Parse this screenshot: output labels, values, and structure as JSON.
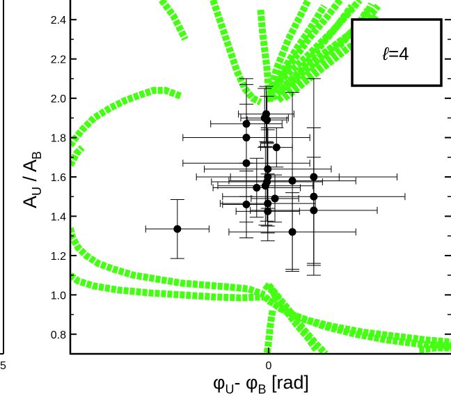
{
  "chart_data": {
    "type": "scatter",
    "title": "",
    "ylabel": "A",
    "ylabel_sub_num": "U",
    "ylabel_sep": " / A",
    "ylabel_sub_den": "B",
    "xlabel": "φ",
    "xlabel_sub_a": "U",
    "xlabel_sep": "- φ",
    "xlabel_sub_b": "B",
    "xlabel_unit": " [rad]",
    "legend_box": {
      "prefix": "ℓ",
      "text": "=4",
      "placement": "top-right"
    },
    "left_panel_fragment_label": "5",
    "xlim": [
      -2.5,
      2.3
    ],
    "ylim": [
      0.7,
      2.5
    ],
    "x_ticks": [
      {
        "value": 0,
        "label": "0"
      }
    ],
    "y_ticks": [
      {
        "value": 0.8,
        "label": "0.8"
      },
      {
        "value": 1.0,
        "label": "1.0"
      },
      {
        "value": 1.2,
        "label": "1.2"
      },
      {
        "value": 1.4,
        "label": "1.4"
      },
      {
        "value": 1.6,
        "label": "1.6"
      },
      {
        "value": 1.8,
        "label": "1.8"
      },
      {
        "value": 2.0,
        "label": "2.0"
      },
      {
        "value": 2.2,
        "label": "2.2"
      },
      {
        "value": 2.4,
        "label": "2.4"
      }
    ],
    "grid": false,
    "colors": {
      "curve": "#44ff11",
      "points": "#000000",
      "frame": "#000000"
    },
    "model_curves": [
      {
        "points": [
          [
            -2.5,
            1.34
          ],
          [
            -2.47,
            1.29
          ],
          [
            -2.4,
            1.24
          ],
          [
            -2.3,
            1.2
          ],
          [
            -2.15,
            1.16
          ],
          [
            -1.95,
            1.13
          ],
          [
            -1.7,
            1.1
          ],
          [
            -1.4,
            1.08
          ],
          [
            -1.1,
            1.06
          ],
          [
            -0.8,
            1.05
          ],
          [
            -0.5,
            1.04
          ],
          [
            -0.25,
            1.03
          ],
          [
            -0.05,
            1.0
          ]
        ]
      },
      {
        "points": [
          [
            -2.5,
            1.1
          ],
          [
            -2.4,
            1.07
          ],
          [
            -2.2,
            1.045
          ],
          [
            -1.9,
            1.025
          ],
          [
            -1.5,
            1.01
          ],
          [
            -1.1,
            1.0
          ],
          [
            -0.7,
            0.99
          ],
          [
            -0.35,
            0.985
          ],
          [
            -0.05,
            0.99
          ]
        ]
      },
      {
        "points": [
          [
            -2.5,
            1.76
          ],
          [
            -2.45,
            1.79
          ],
          [
            -2.35,
            1.84
          ],
          [
            -2.2,
            1.9
          ],
          [
            -2.0,
            1.95
          ],
          [
            -1.8,
            1.99
          ],
          [
            -1.6,
            2.02
          ],
          [
            -1.45,
            2.04
          ],
          [
            -1.3,
            2.04
          ],
          [
            -1.1,
            2.01
          ]
        ]
      },
      {
        "points": [
          [
            -2.5,
            1.66
          ],
          [
            -2.42,
            1.72
          ],
          [
            -2.35,
            1.75
          ]
        ]
      },
      {
        "points": [
          [
            -0.7,
            2.5
          ],
          [
            -0.6,
            2.38
          ],
          [
            -0.5,
            2.26
          ],
          [
            -0.4,
            2.14
          ],
          [
            -0.3,
            2.05
          ],
          [
            -0.2,
            2.0
          ],
          [
            -0.1,
            1.98
          ]
        ]
      },
      {
        "points": [
          [
            -1.35,
            2.5
          ],
          [
            -1.2,
            2.42
          ],
          [
            -1.05,
            2.3
          ]
        ]
      },
      {
        "points": [
          [
            -0.1,
            2.45
          ],
          [
            -0.08,
            2.35
          ],
          [
            -0.05,
            2.25
          ],
          [
            -0.02,
            2.15
          ],
          [
            0.0,
            2.05
          ],
          [
            0.02,
            1.98
          ]
        ]
      },
      {
        "points": [
          [
            0.0,
            2.0
          ],
          [
            0.1,
            2.15
          ],
          [
            0.25,
            2.3
          ],
          [
            0.4,
            2.42
          ],
          [
            0.5,
            2.5
          ]
        ]
      },
      {
        "points": [
          [
            0.0,
            2.0
          ],
          [
            0.15,
            2.12
          ],
          [
            0.35,
            2.25
          ],
          [
            0.55,
            2.37
          ],
          [
            0.7,
            2.47
          ]
        ]
      },
      {
        "points": [
          [
            0.02,
            2.02
          ],
          [
            0.25,
            2.16
          ],
          [
            0.5,
            2.3
          ],
          [
            0.75,
            2.42
          ],
          [
            0.9,
            2.5
          ]
        ]
      },
      {
        "points": [
          [
            0.05,
            2.0
          ],
          [
            0.35,
            2.12
          ],
          [
            0.6,
            2.24
          ],
          [
            0.85,
            2.36
          ],
          [
            1.05,
            2.47
          ]
        ]
      },
      {
        "points": [
          [
            0.07,
            2.06
          ],
          [
            0.5,
            2.22
          ],
          [
            0.8,
            2.34
          ],
          [
            1.0,
            2.43
          ],
          [
            1.15,
            2.5
          ]
        ]
      },
      {
        "points": [
          [
            0.12,
            1.99
          ],
          [
            0.55,
            2.14
          ],
          [
            0.9,
            2.27
          ],
          [
            1.1,
            2.36
          ],
          [
            1.25,
            2.45
          ]
        ]
      },
      {
        "points": [
          [
            0.15,
            2.04
          ],
          [
            0.6,
            2.2
          ],
          [
            1.0,
            2.32
          ],
          [
            1.2,
            2.4
          ],
          [
            1.3,
            2.48
          ]
        ]
      },
      {
        "points": [
          [
            0.2,
            2.0
          ],
          [
            0.7,
            2.16
          ],
          [
            1.05,
            2.27
          ],
          [
            1.25,
            2.35
          ],
          [
            1.35,
            2.42
          ]
        ]
      },
      {
        "points": [
          [
            0.22,
            2.06
          ],
          [
            0.75,
            2.24
          ],
          [
            1.1,
            2.35
          ],
          [
            1.3,
            2.43
          ],
          [
            1.38,
            2.47
          ]
        ]
      },
      {
        "points": [
          [
            -0.05,
            0.99
          ],
          [
            0.15,
            0.93
          ],
          [
            0.4,
            0.88
          ],
          [
            0.8,
            0.84
          ],
          [
            1.2,
            0.81
          ],
          [
            1.6,
            0.79
          ],
          [
            2.0,
            0.77
          ],
          [
            2.3,
            0.76
          ]
        ]
      },
      {
        "points": [
          [
            0.0,
            0.97
          ],
          [
            0.3,
            0.9
          ],
          [
            0.7,
            0.84
          ],
          [
            1.1,
            0.8
          ],
          [
            1.5,
            0.77
          ],
          [
            1.9,
            0.75
          ],
          [
            2.3,
            0.74
          ]
        ]
      },
      {
        "points": [
          [
            -0.05,
            1.05
          ],
          [
            0.05,
            1.02
          ],
          [
            0.1,
            0.98
          ]
        ]
      },
      {
        "points": [
          [
            0.0,
            1.05
          ],
          [
            0.1,
            1.0
          ],
          [
            0.3,
            0.9
          ],
          [
            0.45,
            0.82
          ],
          [
            0.6,
            0.75
          ],
          [
            0.72,
            0.7
          ]
        ]
      },
      {
        "points": [
          [
            0.05,
            1.02
          ],
          [
            0.2,
            0.93
          ],
          [
            0.35,
            0.85
          ],
          [
            0.5,
            0.78
          ],
          [
            0.6,
            0.72
          ]
        ]
      },
      {
        "points": [
          [
            0.05,
            0.92
          ],
          [
            0.02,
            0.84
          ],
          [
            0.0,
            0.76
          ],
          [
            -0.02,
            0.7
          ]
        ]
      },
      {
        "points": [
          [
            1.9,
            0.72
          ],
          [
            2.1,
            0.73
          ],
          [
            2.3,
            0.73
          ]
        ]
      }
    ],
    "data_points": [
      {
        "x": -1.15,
        "y": 1.335,
        "xerr": 0.4,
        "yerr": 0.15
      },
      {
        "x": -0.28,
        "y": 1.87,
        "xerr": 0.45,
        "yerr": 0.2
      },
      {
        "x": -0.28,
        "y": 1.8,
        "xerr": 0.8,
        "yerr": 0.3
      },
      {
        "x": -0.28,
        "y": 1.67,
        "xerr": 0.8,
        "yerr": 0.3
      },
      {
        "x": -0.28,
        "y": 1.46,
        "xerr": 0.3,
        "yerr": 0.17
      },
      {
        "x": -0.05,
        "y": 1.9,
        "xerr": 0.3,
        "yerr": 0.15
      },
      {
        "x": -0.03,
        "y": 1.92,
        "xerr": 0.35,
        "yerr": 0.14
      },
      {
        "x": -0.02,
        "y": 1.89,
        "xerr": 0.25,
        "yerr": 0.12
      },
      {
        "x": 0.1,
        "y": 1.75,
        "xerr": 0.2,
        "yerr": 0.1
      },
      {
        "x": -0.01,
        "y": 1.64,
        "xerr": 0.8,
        "yerr": 0.2
      },
      {
        "x": -0.01,
        "y": 1.6,
        "xerr": 0.9,
        "yerr": 0.25
      },
      {
        "x": -0.02,
        "y": 1.575,
        "xerr": 0.7,
        "yerr": 0.2
      },
      {
        "x": -0.04,
        "y": 1.555,
        "xerr": 0.6,
        "yerr": 0.2
      },
      {
        "x": -0.15,
        "y": 1.545,
        "xerr": 0.55,
        "yerr": 0.15
      },
      {
        "x": 0.08,
        "y": 1.49,
        "xerr": 0.3,
        "yerr": 0.12
      },
      {
        "x": -0.01,
        "y": 1.465,
        "xerr": 0.6,
        "yerr": 0.15
      },
      {
        "x": -0.01,
        "y": 1.425,
        "xerr": 0.4,
        "yerr": 0.15
      },
      {
        "x": 0.3,
        "y": 1.58,
        "xerr": 0.8,
        "yerr": 0.45
      },
      {
        "x": 0.3,
        "y": 1.32,
        "xerr": 0.8,
        "yerr": 0.2
      },
      {
        "x": 0.57,
        "y": 1.6,
        "xerr": 1.05,
        "yerr": 0.5
      },
      {
        "x": 0.57,
        "y": 1.5,
        "xerr": 1.15,
        "yerr": 0.35
      },
      {
        "x": 0.57,
        "y": 1.43,
        "xerr": 0.8,
        "yerr": 0.27
      }
    ]
  }
}
